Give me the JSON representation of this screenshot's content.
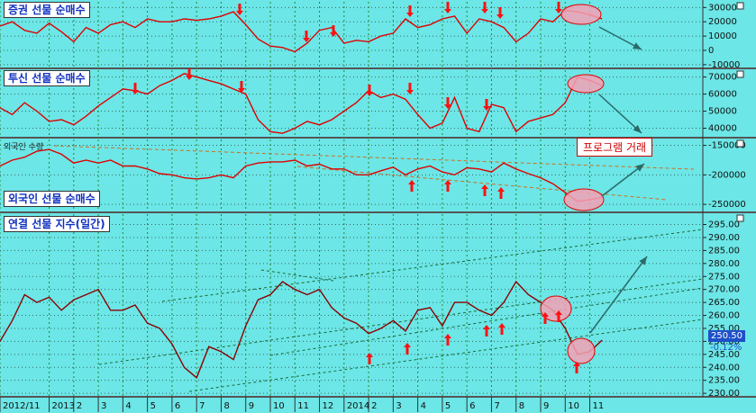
{
  "chart_data": [
    {
      "type": "line",
      "title": "증권 선물 순매수",
      "color": "#e00000",
      "x": [
        0,
        0.5,
        1,
        1.5,
        2,
        2.5,
        3,
        3.5,
        4,
        4.5,
        5,
        5.5,
        6,
        6.5,
        7,
        7.5,
        8,
        8.5,
        9,
        9.5,
        10,
        10.5,
        11,
        11.5,
        12,
        12.5,
        13,
        13.5,
        14,
        14.5,
        15,
        15.5,
        16,
        16.5,
        17,
        17.5,
        18,
        18.5,
        19,
        19.5,
        20,
        20.5,
        21,
        21.5,
        22,
        22.5,
        23,
        23.5,
        24,
        24.5
      ],
      "values": [
        17000,
        20000,
        14000,
        12000,
        19000,
        13000,
        6000,
        16000,
        12000,
        18000,
        20000,
        16000,
        22000,
        20000,
        20000,
        22000,
        21000,
        22000,
        24000,
        27000,
        18000,
        8000,
        3000,
        2000,
        -1000,
        5000,
        14000,
        16000,
        5000,
        7000,
        6000,
        10000,
        12000,
        22000,
        16000,
        18000,
        22000,
        24000,
        12000,
        22000,
        20000,
        16000,
        6000,
        12000,
        22000,
        20000,
        28000,
        27000,
        25000,
        22000
      ],
      "xlim": [
        0,
        28.6
      ],
      "ylim": [
        -12000,
        34000
      ],
      "yticks": [
        30000,
        20000,
        10000,
        0,
        -10000
      ],
      "grid": true
    },
    {
      "type": "line",
      "title": "투신 선물 순매수",
      "color": "#e00000",
      "x": [
        0,
        0.5,
        1,
        1.5,
        2,
        2.5,
        3,
        3.5,
        4,
        4.5,
        5,
        5.5,
        6,
        6.5,
        7,
        7.5,
        8,
        8.5,
        9,
        9.5,
        10,
        10.5,
        11,
        11.5,
        12,
        12.5,
        13,
        13.5,
        14,
        14.5,
        15,
        15.5,
        16,
        16.5,
        17,
        17.5,
        18,
        18.5,
        19,
        19.5,
        20,
        20.5,
        21,
        21.5,
        22,
        22.5,
        23,
        23.5,
        24,
        24.5
      ],
      "values": [
        52000,
        48000,
        55000,
        50000,
        44000,
        45000,
        42000,
        47000,
        53000,
        58000,
        63000,
        62000,
        60000,
        65000,
        68000,
        72000,
        70000,
        68000,
        66000,
        63000,
        60000,
        45000,
        38000,
        37000,
        40000,
        44000,
        42000,
        45000,
        50000,
        55000,
        62000,
        58000,
        60000,
        57000,
        48000,
        40000,
        43000,
        58000,
        40000,
        38000,
        54000,
        52000,
        38000,
        44000,
        46000,
        48000,
        55000,
        70000,
        68000,
        65000
      ],
      "xlim": [
        0,
        28.6
      ],
      "ylim": [
        35000,
        74000
      ],
      "yticks": [
        70000,
        60000,
        50000,
        40000
      ],
      "grid": true
    },
    {
      "type": "line",
      "title": "외국인 선물 순매수",
      "subtitle": "외국인 수량",
      "annotation": "프로그램 거래",
      "color": "#e00000",
      "x": [
        0,
        0.5,
        1,
        1.5,
        2,
        2.5,
        3,
        3.5,
        4,
        4.5,
        5,
        5.5,
        6,
        6.5,
        7,
        7.5,
        8,
        8.5,
        9,
        9.5,
        10,
        10.5,
        11,
        11.5,
        12,
        12.5,
        13,
        13.5,
        14,
        14.5,
        15,
        15.5,
        16,
        16.5,
        17,
        17.5,
        18,
        18.5,
        19,
        19.5,
        20,
        20.5,
        21,
        21.5,
        22,
        22.5,
        23,
        23.5,
        24,
        24.5
      ],
      "values": [
        -185000,
        -175000,
        -170000,
        -160000,
        -157000,
        -165000,
        -180000,
        -175000,
        -180000,
        -175000,
        -185000,
        -185000,
        -190000,
        -198000,
        -200000,
        -205000,
        -207000,
        -205000,
        -200000,
        -205000,
        -185000,
        -180000,
        -178000,
        -178000,
        -175000,
        -185000,
        -182000,
        -190000,
        -190000,
        -200000,
        -200000,
        -193000,
        -187000,
        -200000,
        -190000,
        -185000,
        -195000,
        -200000,
        -188000,
        -190000,
        -195000,
        -180000,
        -190000,
        -198000,
        -205000,
        -215000,
        -230000,
        -245000,
        -242000,
        -238000
      ],
      "xlim": [
        0,
        28.6
      ],
      "ylim": [
        -262000,
        -140000
      ],
      "yticks": [
        -150000,
        -200000,
        -250000
      ],
      "grid": true
    },
    {
      "type": "line",
      "title": "연결 선물 지수(일간)",
      "color": "#8b0000",
      "x": [
        0,
        0.5,
        1,
        1.5,
        2,
        2.5,
        3,
        3.5,
        4,
        4.5,
        5,
        5.5,
        6,
        6.5,
        7,
        7.5,
        8,
        8.5,
        9,
        9.5,
        10,
        10.5,
        11,
        11.5,
        12,
        12.5,
        13,
        13.5,
        14,
        14.5,
        15,
        15.5,
        16,
        16.5,
        17,
        17.5,
        18,
        18.5,
        19,
        19.5,
        20,
        20.5,
        21,
        21.5,
        22,
        22.5,
        23,
        23.5,
        24,
        24.5
      ],
      "values": [
        250,
        258,
        268,
        265,
        267,
        262,
        266,
        268,
        270,
        262,
        262,
        264,
        257,
        255,
        249,
        240,
        236,
        248,
        246,
        243,
        256,
        266,
        268,
        273,
        270,
        268,
        270,
        263,
        259,
        257,
        253,
        255,
        258,
        254,
        262,
        263,
        256,
        265,
        265,
        262,
        260,
        265,
        273,
        268,
        265,
        262,
        255,
        245,
        246,
        250.5
      ],
      "last_label": "250.50",
      "change_label": "-0.12%",
      "xlim": [
        0,
        28.6
      ],
      "ylim": [
        229,
        299
      ],
      "yticks": [
        {
          "value": 295,
          "label": "295.00"
        },
        {
          "value": 290,
          "label": "290.00"
        },
        {
          "value": 285,
          "label": "285.00"
        },
        {
          "value": 280,
          "label": "280.00"
        },
        {
          "value": 275,
          "label": "275.00"
        },
        {
          "value": 270,
          "label": "270.00"
        },
        {
          "value": 265,
          "label": "265.00"
        },
        {
          "value": 260,
          "label": "260.00"
        },
        {
          "value": 255,
          "label": "255.00"
        },
        {
          "value": 250,
          "label": "250.00"
        },
        {
          "value": 245,
          "label": "245.00"
        },
        {
          "value": 240,
          "label": "240.00"
        },
        {
          "value": 235,
          "label": "235.00"
        },
        {
          "value": 230,
          "label": "230.00"
        }
      ],
      "xticks": [
        {
          "value": 0,
          "label": "2012/11"
        },
        {
          "value": 2,
          "label": "2013"
        },
        {
          "value": 3,
          "label": "2"
        },
        {
          "value": 4,
          "label": "3"
        },
        {
          "value": 5,
          "label": "4"
        },
        {
          "value": 6,
          "label": "5"
        },
        {
          "value": 7,
          "label": "6"
        },
        {
          "value": 8,
          "label": "7"
        },
        {
          "value": 9,
          "label": "8"
        },
        {
          "value": 10,
          "label": "9"
        },
        {
          "value": 11,
          "label": "10"
        },
        {
          "value": 12,
          "label": "11"
        },
        {
          "value": 13,
          "label": "12"
        },
        {
          "value": 14,
          "label": "2014"
        },
        {
          "value": 15,
          "label": "2"
        },
        {
          "value": 16,
          "label": "3"
        },
        {
          "value": 17,
          "label": "4"
        },
        {
          "value": 18,
          "label": "5"
        },
        {
          "value": 19,
          "label": "6"
        },
        {
          "value": 20,
          "label": "7"
        },
        {
          "value": 21,
          "label": "8"
        },
        {
          "value": 22,
          "label": "9"
        },
        {
          "value": 23,
          "label": "10"
        },
        {
          "value": 24,
          "label": "11"
        }
      ],
      "grid": true
    }
  ]
}
